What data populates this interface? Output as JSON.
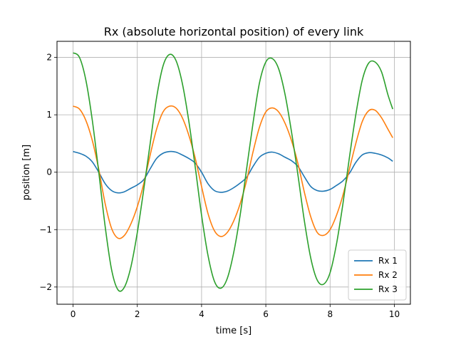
{
  "chart_data": {
    "type": "line",
    "title": "Rx (absolute horizontal position) of every link",
    "xlabel": "time [s]",
    "ylabel": "position [m]",
    "xlim": [
      -0.5,
      10.5
    ],
    "ylim": [
      -2.3,
      2.28
    ],
    "xticks": [
      0,
      2,
      4,
      6,
      8,
      10
    ],
    "xtick_labels": [
      "0",
      "2",
      "4",
      "6",
      "8",
      "10"
    ],
    "yticks": [
      -2,
      -1,
      0,
      1,
      2
    ],
    "ytick_labels": [
      "−2",
      "−1",
      "0",
      "1",
      "2"
    ],
    "grid": true,
    "legend_position": "lower-right",
    "x": [
      0,
      0.2,
      0.4,
      0.6,
      0.8,
      1.0,
      1.2,
      1.4,
      1.6,
      1.8,
      2.0,
      2.2,
      2.4,
      2.6,
      2.8,
      3.0,
      3.2,
      3.4,
      3.6,
      3.8,
      4.0,
      4.2,
      4.4,
      4.6,
      4.8,
      5.0,
      5.2,
      5.4,
      5.6,
      5.8,
      6.0,
      6.2,
      6.4,
      6.6,
      6.8,
      7.0,
      7.2,
      7.4,
      7.6,
      7.8,
      8.0,
      8.2,
      8.4,
      8.6,
      8.8,
      9.0,
      9.2,
      9.4,
      9.6,
      9.8,
      9.95
    ],
    "series": [
      {
        "name": "Rx 1",
        "color": "#1f77b4",
        "values": [
          0.36,
          0.33,
          0.28,
          0.18,
          0.0,
          -0.2,
          -0.32,
          -0.36,
          -0.34,
          -0.28,
          -0.22,
          -0.13,
          0.06,
          0.24,
          0.33,
          0.36,
          0.35,
          0.3,
          0.24,
          0.16,
          0.0,
          -0.2,
          -0.32,
          -0.35,
          -0.33,
          -0.27,
          -0.19,
          -0.09,
          0.1,
          0.26,
          0.33,
          0.35,
          0.32,
          0.26,
          0.2,
          0.1,
          -0.08,
          -0.25,
          -0.32,
          -0.33,
          -0.3,
          -0.23,
          -0.15,
          -0.02,
          0.17,
          0.3,
          0.34,
          0.33,
          0.3,
          0.25,
          0.19
        ]
      },
      {
        "name": "Rx 2",
        "color": "#ff7f0e",
        "values": [
          1.15,
          1.1,
          0.9,
          0.55,
          0.05,
          -0.55,
          -0.98,
          -1.15,
          -1.1,
          -0.9,
          -0.6,
          -0.2,
          0.3,
          0.75,
          1.05,
          1.15,
          1.12,
          0.95,
          0.65,
          0.25,
          -0.25,
          -0.72,
          -1.02,
          -1.12,
          -1.05,
          -0.85,
          -0.55,
          -0.15,
          0.35,
          0.78,
          1.05,
          1.12,
          1.05,
          0.85,
          0.55,
          0.15,
          -0.35,
          -0.78,
          -1.05,
          -1.1,
          -1.0,
          -0.75,
          -0.4,
          0.05,
          0.5,
          0.88,
          1.07,
          1.08,
          0.95,
          0.75,
          0.6
        ]
      },
      {
        "name": "Rx 3",
        "color": "#2ca02c",
        "values": [
          2.08,
          2.0,
          1.6,
          0.9,
          0.0,
          -0.95,
          -1.7,
          -2.05,
          -2.0,
          -1.65,
          -1.05,
          -0.3,
          0.5,
          1.3,
          1.85,
          2.05,
          1.95,
          1.55,
          0.9,
          0.1,
          -0.75,
          -1.45,
          -1.9,
          -2.02,
          -1.85,
          -1.4,
          -0.75,
          0.05,
          0.85,
          1.55,
          1.92,
          1.98,
          1.8,
          1.35,
          0.7,
          -0.05,
          -0.85,
          -1.5,
          -1.88,
          -1.95,
          -1.75,
          -1.25,
          -0.55,
          0.25,
          1.0,
          1.6,
          1.9,
          1.92,
          1.75,
          1.35,
          1.1
        ]
      }
    ]
  }
}
